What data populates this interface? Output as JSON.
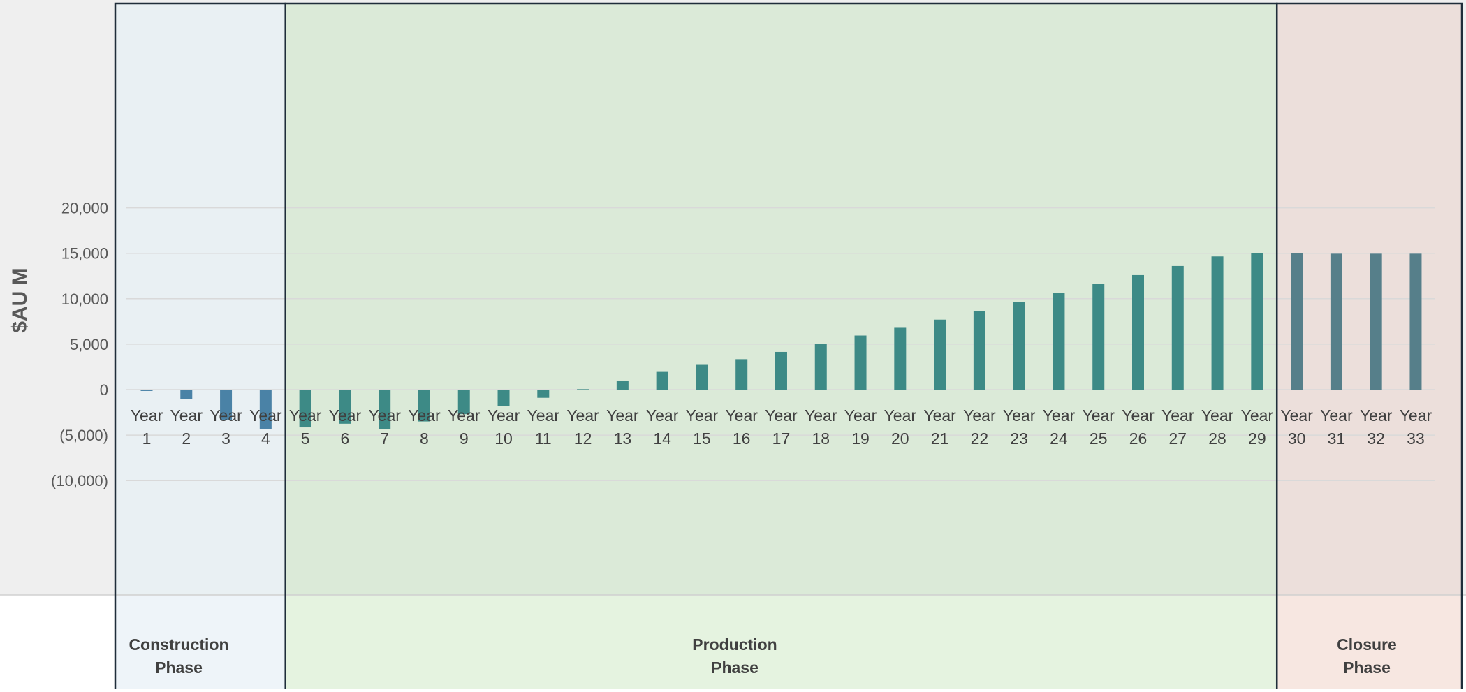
{
  "chart_data": {
    "type": "bar",
    "ylabel": "$AU M",
    "ylim": [
      -11300,
      20500
    ],
    "y_ticks": [
      {
        "value": 20000,
        "label": "20,000"
      },
      {
        "value": 15000,
        "label": "15,000"
      },
      {
        "value": 10000,
        "label": "10,000"
      },
      {
        "value": 5000,
        "label": "5,000"
      },
      {
        "value": 0,
        "label": "0"
      },
      {
        "value": -5000,
        "label": "(5,000)"
      },
      {
        "value": -10000,
        "label": "(10,000)"
      }
    ],
    "grid": true,
    "categories": [
      [
        "Year",
        "1"
      ],
      [
        "Year",
        "2"
      ],
      [
        "Year",
        "3"
      ],
      [
        "Year",
        "4"
      ],
      [
        "Year",
        "5"
      ],
      [
        "Year",
        "6"
      ],
      [
        "Year",
        "7"
      ],
      [
        "Year",
        "8"
      ],
      [
        "Year",
        "9"
      ],
      [
        "Year",
        "10"
      ],
      [
        "Year",
        "11"
      ],
      [
        "Year",
        "12"
      ],
      [
        "Year",
        "13"
      ],
      [
        "Year",
        "14"
      ],
      [
        "Year",
        "15"
      ],
      [
        "Year",
        "16"
      ],
      [
        "Year",
        "17"
      ],
      [
        "Year",
        "18"
      ],
      [
        "Year",
        "19"
      ],
      [
        "Year",
        "20"
      ],
      [
        "Year",
        "21"
      ],
      [
        "Year",
        "22"
      ],
      [
        "Year",
        "23"
      ],
      [
        "Year",
        "24"
      ],
      [
        "Year",
        "25"
      ],
      [
        "Year",
        "26"
      ],
      [
        "Year",
        "27"
      ],
      [
        "Year",
        "28"
      ],
      [
        "Year",
        "29"
      ],
      [
        "Year",
        "30"
      ],
      [
        "Year",
        "31"
      ],
      [
        "Year",
        "32"
      ],
      [
        "Year",
        "33"
      ]
    ],
    "values": [
      -150,
      -1000,
      -3300,
      -4300,
      -4150,
      -3750,
      -4350,
      -3500,
      -2700,
      -1800,
      -900,
      50,
      1000,
      1950,
      2800,
      3350,
      4150,
      5050,
      5950,
      6800,
      7700,
      8650,
      9650,
      10600,
      11600,
      12600,
      13600,
      14650,
      15000,
      15000,
      14950,
      14950,
      14950
    ],
    "phases": [
      {
        "name": [
          "Construction",
          "Phase"
        ],
        "start_index": 0,
        "end_index": 3,
        "fill": "#e9f0f3",
        "band_fill": "#eef4f9",
        "bar_color": "#4a82a6"
      },
      {
        "name": [
          "Production",
          "Phase"
        ],
        "start_index": 4,
        "end_index": 28,
        "fill": "#dbead8",
        "band_fill": "#e5f3e0",
        "bar_color": "#3d8a86"
      },
      {
        "name": [
          "Closure",
          "Phase"
        ],
        "start_index": 29,
        "end_index": 32,
        "fill": "#ecdfdb",
        "band_fill": "#f7e7e1",
        "bar_color": "#567f8a"
      }
    ],
    "colors": {
      "background": "#efefef",
      "gridline": "#d9d9d9",
      "phase_border": "#1f2d3a"
    }
  }
}
